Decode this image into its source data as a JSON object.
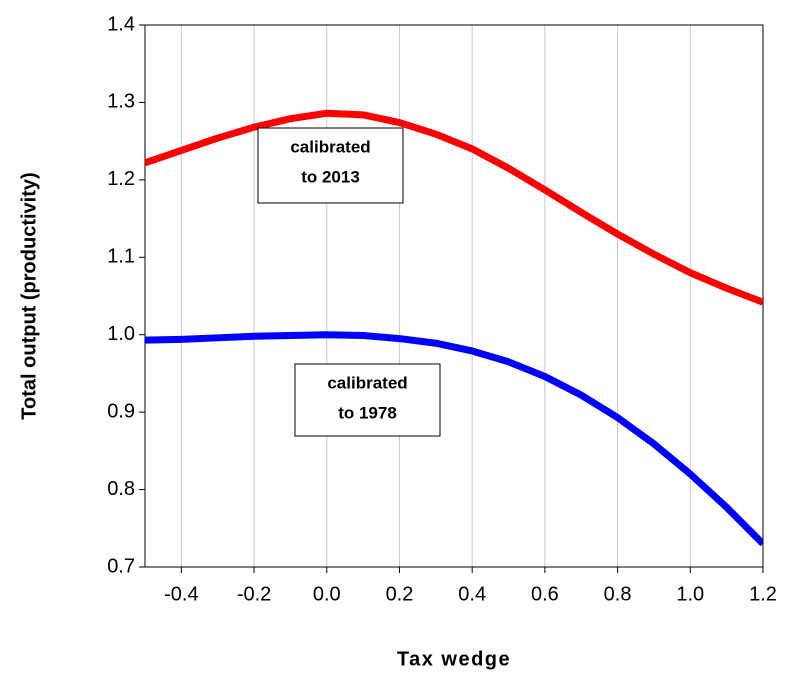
{
  "chart_data": {
    "type": "line",
    "x_label": "Tax wedge",
    "y_label": "Total output (productivity)",
    "x": [
      -0.5,
      -0.4,
      -0.3,
      -0.2,
      -0.1,
      0,
      0.1,
      0.2,
      0.3,
      0.4,
      0.5,
      0.6,
      0.7,
      0.8,
      0.9,
      1.0,
      1.1,
      1.2
    ],
    "series": [
      {
        "color": "#ff0000",
        "values": [
          1.222,
          1.238,
          1.254,
          1.268,
          1.279,
          1.286,
          1.284,
          1.274,
          1.259,
          1.24,
          1.215,
          1.187,
          1.158,
          1.13,
          1.104,
          1.08,
          1.06,
          1.042
        ]
      },
      {
        "color": "#0000ff",
        "values": [
          0.993,
          0.994,
          0.996,
          0.998,
          0.999,
          1.0,
          0.999,
          0.995,
          0.989,
          0.979,
          0.965,
          0.946,
          0.922,
          0.893,
          0.859,
          0.82,
          0.777,
          0.73
        ]
      }
    ],
    "annotations": [
      {
        "lines": [
          "calibrated",
          "to 2013"
        ]
      },
      {
        "lines": [
          "calibrated",
          "to 1978"
        ]
      }
    ],
    "xlim": [
      -0.5,
      1.2
    ],
    "xticks": [
      -0.4,
      -0.2,
      {
        "value": 0,
        "label": "0.0"
      },
      0.2,
      0.4,
      0.6,
      0.8,
      {
        "value": 1,
        "label": "1.0"
      },
      1.2
    ],
    "ylim": [
      0.7,
      1.4
    ],
    "yticks": [
      0.7,
      0.8,
      0.9,
      {
        "value": 1,
        "label": "1.0"
      },
      1.1,
      1.2,
      1.3,
      1.4
    ],
    "grid": "x"
  }
}
